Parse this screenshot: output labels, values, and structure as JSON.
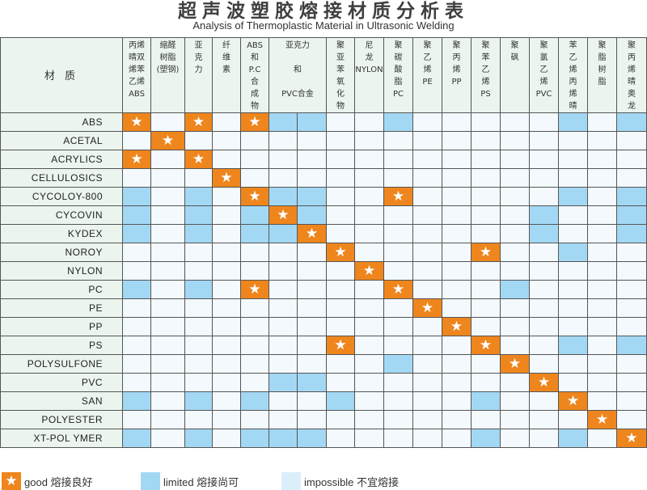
{
  "title": "超声波塑胶熔接材质分析表",
  "subtitle": "Analysis of Thermoplastic Material in Ultrasonic Welding",
  "corner_label": "材 质",
  "colors": {
    "good": "#ee861d",
    "limited": "#a3d8f4",
    "impossible": "#f3f9fd",
    "header": "#ebf5ee"
  },
  "icons": {
    "good": "star-icon"
  },
  "columns": [
    {
      "label": "丙烯\n晴双\n烯苯\n乙烯\nABS",
      "span": 1
    },
    {
      "label": "缩醛\n树脂\n(塑钢)",
      "span": 1
    },
    {
      "label": "亚\n克\n力",
      "span": 1
    },
    {
      "label": "纤\n维\n素",
      "span": 1
    },
    {
      "label": "ABS\n和\nP.C\n合\n成\n物",
      "span": 1
    },
    {
      "label": "亚克力\n\n和\n\nPVC合金",
      "span": 2
    },
    {
      "label": "聚\n亚\n苯\n氧\n化\n物",
      "span": 1
    },
    {
      "label": "尼\n龙\nNYLON",
      "span": 1
    },
    {
      "label": "聚\n碳\n酸\n脂\nPC",
      "span": 1
    },
    {
      "label": "聚\n乙\n烯\nPE",
      "span": 1
    },
    {
      "label": "聚\n丙\n烯\nPP",
      "span": 1
    },
    {
      "label": "聚\n苯\n乙\n烯\nPS",
      "span": 1
    },
    {
      "label": "聚\n砜",
      "span": 1
    },
    {
      "label": "聚\n氯\n乙\n烯\nPVC",
      "span": 1
    },
    {
      "label": "苯\n乙\n烯\n丙\n烯\n晴",
      "span": 1
    },
    {
      "label": "聚\n脂\n树\n脂",
      "span": 1
    },
    {
      "label": "聚\n丙\n烯\n晴\n奥\n龙",
      "span": 1
    }
  ],
  "rows": [
    {
      "label": "ABS",
      "cells": "g.g.gll..l.....l.l"
    },
    {
      "label": "ACETAL",
      "cells": ".g................"
    },
    {
      "label": "ACRYLICS",
      "cells": "g.g..............."
    },
    {
      "label": "CELLULOSICS",
      "cells": "...g.............."
    },
    {
      "label": "CYCOLOY-800",
      "cells": "l.l.gll..g.....l.l"
    },
    {
      "label": "CYCOVIN",
      "cells": "l.l.lgl.......l..l"
    },
    {
      "label": "KYDEX",
      "cells": "l.l.llg.......l..l"
    },
    {
      "label": "NOROY",
      "cells": ".......g....g..l.."
    },
    {
      "label": "NYLON",
      "cells": "........g........."
    },
    {
      "label": "PC",
      "cells": "l.l.g....g...l...."
    },
    {
      "label": "PE",
      "cells": "..........g......."
    },
    {
      "label": "PP",
      "cells": "...........g......"
    },
    {
      "label": "PS",
      "cells": ".......g....g..l.l"
    },
    {
      "label": "POLYSULFONE",
      "cells": ".........l...g...."
    },
    {
      "label": "PVC",
      "cells": ".....ll.......g..."
    },
    {
      "label": "SAN",
      "cells": "l.l.l..l....l..g.."
    },
    {
      "label": "POLYESTER",
      "cells": "................g."
    },
    {
      "label": "XT-POL YMER",
      "cells": "l.l.lll.....l..l.g"
    }
  ],
  "legend": {
    "good": "good 熔接良好",
    "limited": "limited 熔接尚可",
    "impossible": "impossible  不宜熔接"
  }
}
